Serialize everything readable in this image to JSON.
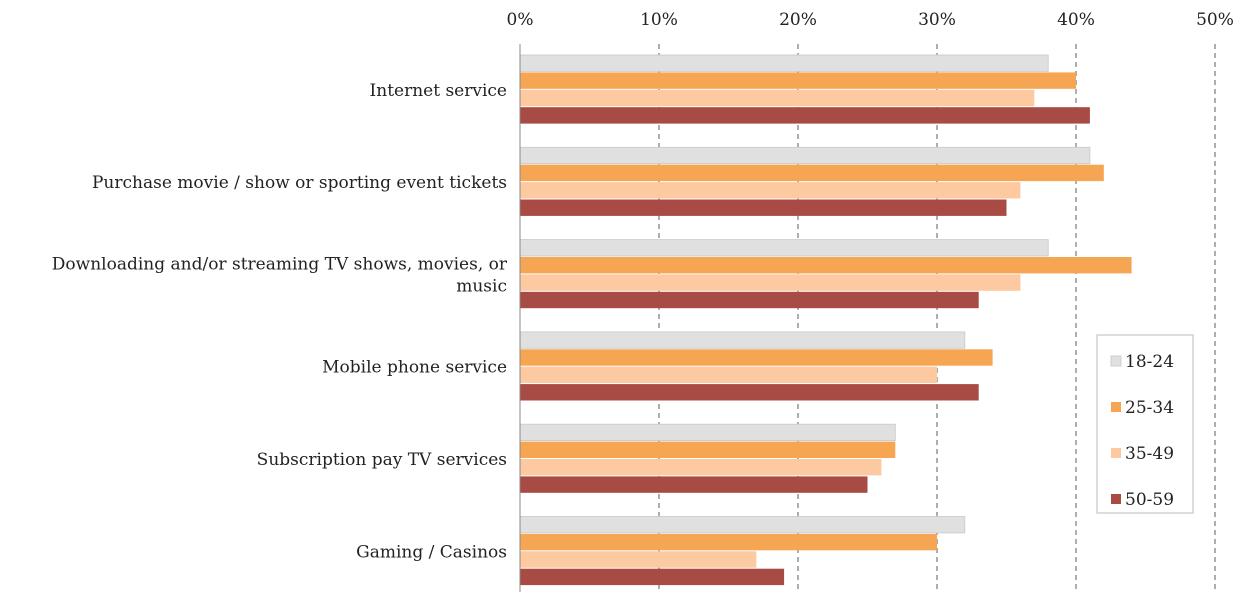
{
  "chart_data": {
    "type": "bar",
    "orientation": "horizontal",
    "title": "",
    "xlabel": "",
    "ylabel": "",
    "xlim": [
      0,
      50
    ],
    "x_ticks": [
      "0%",
      "10%",
      "20%",
      "30%",
      "40%",
      "50%"
    ],
    "x_axis_position": "top",
    "grid": "vertical dashed",
    "legend_position": "right",
    "categories": [
      "Internet service",
      "Purchase movie / show or sporting event tickets",
      "Downloading and/or streaming TV shows, movies, or music",
      "Mobile phone service",
      "Subscription pay TV services",
      "Gaming / Casinos"
    ],
    "category_lines": [
      [
        "Internet service"
      ],
      [
        "Purchase movie / show or sporting event tickets"
      ],
      [
        "Downloading and/or streaming TV shows, movies, or",
        "music"
      ],
      [
        "Mobile phone service"
      ],
      [
        "Subscription pay TV services"
      ],
      [
        "Gaming / Casinos"
      ]
    ],
    "series": [
      {
        "name": "18-24",
        "color": "#e0e0e0",
        "values": [
          38,
          41,
          38,
          32,
          27,
          32
        ]
      },
      {
        "name": "25-34",
        "color": "#f6a552",
        "values": [
          40,
          42,
          44,
          34,
          27,
          30
        ]
      },
      {
        "name": "35-49",
        "color": "#fcc9a0",
        "values": [
          37,
          36,
          36,
          30,
          26,
          17
        ]
      },
      {
        "name": "50-59",
        "color": "#a84b44",
        "values": [
          41,
          35,
          33,
          33,
          25,
          19
        ]
      }
    ]
  }
}
